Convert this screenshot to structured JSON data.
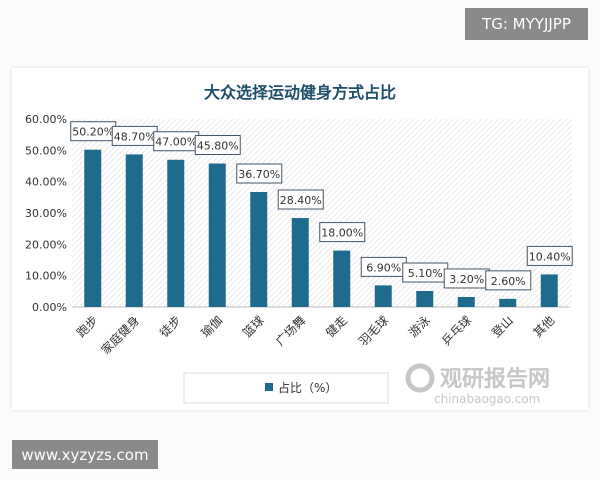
{
  "overlay": {
    "tg": "TG: MYYJJPP",
    "site": "www.xyzyzs.com",
    "watermark_cn": "观研报告网",
    "watermark_en": "chinabaogao.com"
  },
  "chart_data": {
    "type": "bar",
    "title": "大众选择运动健身方式占比",
    "categories": [
      "跑步",
      "家庭健身",
      "徒步",
      "瑜伽",
      "篮球",
      "广场舞",
      "健走",
      "羽毛球",
      "游泳",
      "乒乓球",
      "登山",
      "其他"
    ],
    "values": [
      50.2,
      48.7,
      47.0,
      45.8,
      36.7,
      28.4,
      18.0,
      6.9,
      5.1,
      3.2,
      2.6,
      10.4
    ],
    "data_labels": [
      "50.20%",
      "48.70%",
      "47.00%",
      "45.80%",
      "36.70%",
      "28.40%",
      "18.00%",
      "6.90%",
      "5.10%",
      "3.20%",
      "2.60%",
      "10.40%"
    ],
    "yticks": [
      "0.00%",
      "10.00%",
      "20.00%",
      "30.00%",
      "40.00%",
      "50.00%",
      "60.00%"
    ],
    "ylim": [
      0,
      60
    ],
    "legend": {
      "label": "占比（%）",
      "position": "bottom"
    },
    "bar_color": "#1f6b8e",
    "grid": false
  }
}
